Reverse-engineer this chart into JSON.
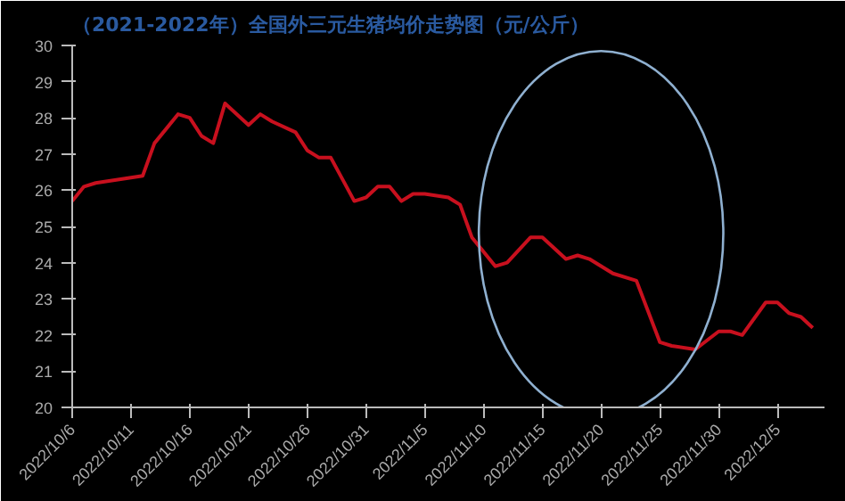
{
  "chart_data": {
    "type": "line",
    "title": "（2021-2022年）全国外三元生猪均价走势图（元/公斤）",
    "x": [
      "2022-10-06",
      "2022-10-07",
      "2022-10-08",
      "2022-10-10",
      "2022-10-12",
      "2022-10-13",
      "2022-10-15",
      "2022-10-16",
      "2022-10-17",
      "2022-10-18",
      "2022-10-19",
      "2022-10-21",
      "2022-10-22",
      "2022-10-23",
      "2022-10-25",
      "2022-10-26",
      "2022-10-27",
      "2022-10-28",
      "2022-10-30",
      "2022-10-31",
      "2022-11-01",
      "2022-11-02",
      "2022-11-03",
      "2022-11-04",
      "2022-11-05",
      "2022-11-07",
      "2022-11-08",
      "2022-11-09",
      "2022-11-11",
      "2022-11-12",
      "2022-11-14",
      "2022-11-15",
      "2022-11-17",
      "2022-11-18",
      "2022-11-19",
      "2022-11-21",
      "2022-11-23",
      "2022-11-25",
      "2022-11-26",
      "2022-11-28",
      "2022-11-30",
      "2022-12-01",
      "2022-12-02",
      "2022-12-04",
      "2022-12-05",
      "2022-12-06",
      "2022-12-07",
      "2022-12-08"
    ],
    "series": [
      {
        "color": "#c8101e",
        "values": [
          25.7,
          26.1,
          26.2,
          26.3,
          26.4,
          27.3,
          28.1,
          28.0,
          27.5,
          27.3,
          28.4,
          27.8,
          28.1,
          27.9,
          27.6,
          27.1,
          26.9,
          26.9,
          25.7,
          25.8,
          26.1,
          26.1,
          25.7,
          25.9,
          25.9,
          25.8,
          25.6,
          24.7,
          23.9,
          24.0,
          24.7,
          24.7,
          24.1,
          24.2,
          24.1,
          23.7,
          23.5,
          21.8,
          21.7,
          21.6,
          22.1,
          22.1,
          22.0,
          22.9,
          22.9,
          22.6,
          22.5,
          22.2
        ]
      }
    ],
    "xlim": [
      "2022-10-06",
      "2022-12-09"
    ],
    "xticks": [
      {
        "value": "2022-10-06",
        "label": "2022/10/6"
      },
      {
        "value": "2022-10-11",
        "label": "2022/10/11"
      },
      {
        "value": "2022-10-16",
        "label": "2022/10/16"
      },
      {
        "value": "2022-10-21",
        "label": "2022/10/21"
      },
      {
        "value": "2022-10-26",
        "label": "2022/10/26"
      },
      {
        "value": "2022-10-31",
        "label": "2022/10/31"
      },
      {
        "value": "2022-11-05",
        "label": "2022/11/5"
      },
      {
        "value": "2022-11-10",
        "label": "2022/11/10"
      },
      {
        "value": "2022-11-15",
        "label": "2022/11/15"
      },
      {
        "value": "2022-11-20",
        "label": "2022/11/20"
      },
      {
        "value": "2022-11-25",
        "label": "2022/11/25"
      },
      {
        "value": "2022-11-30",
        "label": "2022/11/30"
      },
      {
        "value": "2022-12-05",
        "label": "2022/12/5"
      }
    ],
    "ylim": [
      20,
      30
    ],
    "yticks": [
      20,
      21,
      22,
      23,
      24,
      25,
      26,
      27,
      28,
      29,
      30
    ],
    "grid": false,
    "marker": "none",
    "line_style": "solid"
  }
}
